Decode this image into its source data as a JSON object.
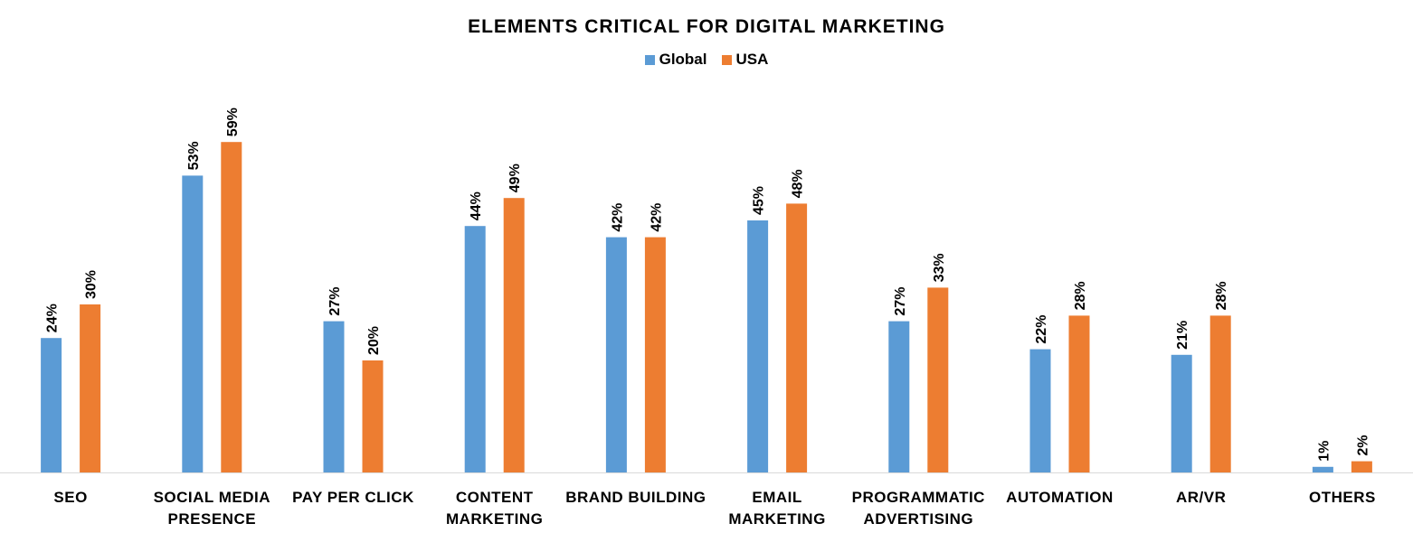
{
  "chart_data": {
    "type": "bar",
    "title": "ELEMENTS CRITICAL FOR DIGITAL MARKETING",
    "xlabel": "",
    "ylabel": "",
    "ylim": [
      0,
      65
    ],
    "grid": false,
    "legend_position": "top-center",
    "categories": [
      [
        "SEO"
      ],
      [
        "SOCIAL MEDIA",
        "PRESENCE"
      ],
      [
        "PAY PER CLICK"
      ],
      [
        "CONTENT",
        "MARKETING"
      ],
      [
        "BRAND BUILDING"
      ],
      [
        "EMAIL",
        "MARKETING"
      ],
      [
        "PROGRAMMATIC",
        "ADVERTISING"
      ],
      [
        "AUTOMATION"
      ],
      [
        "AR/VR"
      ],
      [
        "OTHERS"
      ]
    ],
    "series": [
      {
        "name": "Global",
        "color": "#5B9BD5",
        "values": [
          24,
          53,
          27,
          44,
          42,
          45,
          27,
          22,
          21,
          1
        ]
      },
      {
        "name": "USA",
        "color": "#ED7D31",
        "values": [
          30,
          59,
          20,
          49,
          42,
          48,
          33,
          28,
          28,
          2
        ]
      }
    ],
    "value_suffix": "%"
  }
}
